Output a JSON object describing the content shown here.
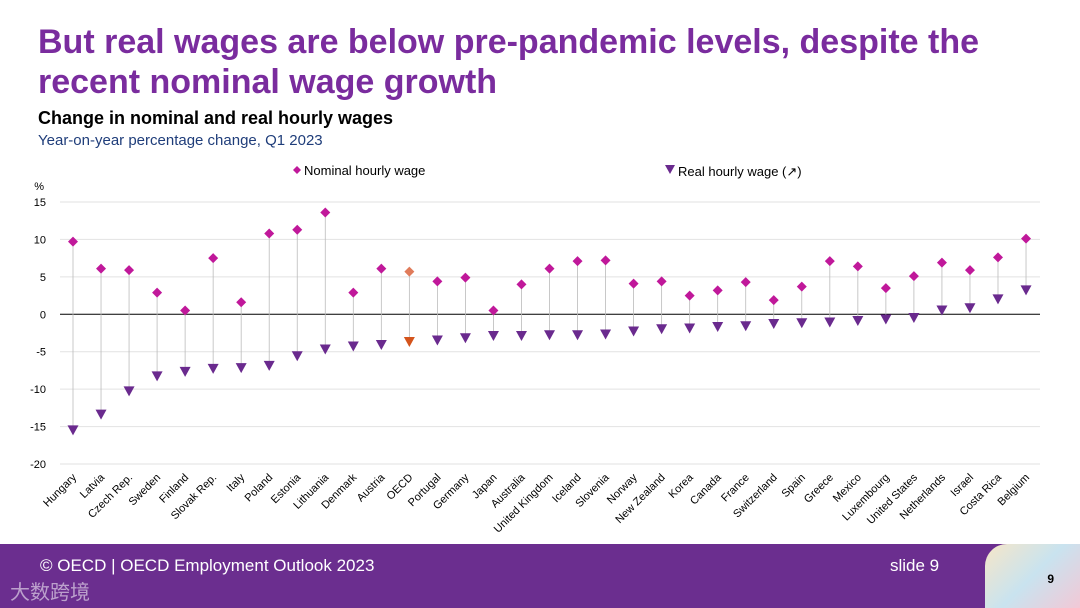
{
  "slide": {
    "title": "But real wages are below pre-pandemic levels, despite the recent nominal wage growth",
    "footer": "© OECD | OECD Employment Outlook 2023",
    "slide_label": "slide 9",
    "page_number": "9",
    "watermark": "大数跨境"
  },
  "chart_data": {
    "type": "scatter",
    "title": "Change in nominal and real hourly wages",
    "subtitle": "Year-on-year percentage change, Q1 2023",
    "ylabel": "%",
    "ylim": [
      -20,
      15
    ],
    "yticks": [
      15,
      10,
      5,
      0,
      -5,
      -10,
      -15,
      -20
    ],
    "grid": true,
    "legend_position": "top",
    "categories": [
      "Hungary",
      "Latvia",
      "Czech Rep.",
      "Sweden",
      "Finland",
      "Slovak Rep.",
      "Italy",
      "Poland",
      "Estonia",
      "Lithuania",
      "Denmark",
      "Austria",
      "OECD",
      "Portugal",
      "Germany",
      "Japan",
      "Australia",
      "United Kingdom",
      "Iceland",
      "Slovenia",
      "Norway",
      "New Zealand",
      "Korea",
      "Canada",
      "France",
      "Switzerland",
      "Spain",
      "Greece",
      "Mexico",
      "Luxembourg",
      "United States",
      "Netherlands",
      "Israel",
      "Costa Rica",
      "Belgium"
    ],
    "highlight": "OECD",
    "series": [
      {
        "name": "Nominal hourly wage",
        "marker": "diamond",
        "color": "#c0189a",
        "highlight_color": "#e07b5a",
        "values": [
          9.7,
          6.1,
          5.9,
          2.9,
          0.5,
          7.5,
          1.6,
          10.8,
          11.3,
          13.6,
          2.9,
          6.1,
          5.7,
          4.4,
          4.9,
          0.5,
          4.0,
          6.1,
          7.1,
          7.2,
          4.1,
          4.4,
          2.5,
          3.2,
          4.3,
          1.9,
          3.7,
          7.1,
          6.4,
          3.5,
          5.1,
          6.9,
          5.9,
          7.6,
          10.1
        ]
      },
      {
        "name": "Real hourly wage (↗)",
        "marker": "triangle-down",
        "color": "#6a2a8e",
        "highlight_color": "#d4541c",
        "values": [
          -15.5,
          -13.4,
          -10.3,
          -8.3,
          -7.7,
          -7.3,
          -7.2,
          -6.9,
          -5.6,
          -4.7,
          -4.3,
          -4.1,
          -3.7,
          -3.5,
          -3.2,
          -2.9,
          -2.9,
          -2.8,
          -2.8,
          -2.7,
          -2.3,
          -2.0,
          -1.9,
          -1.7,
          -1.6,
          -1.3,
          -1.2,
          -1.1,
          -0.9,
          -0.7,
          -0.5,
          0.5,
          0.8,
          2.0,
          3.2
        ]
      }
    ]
  }
}
